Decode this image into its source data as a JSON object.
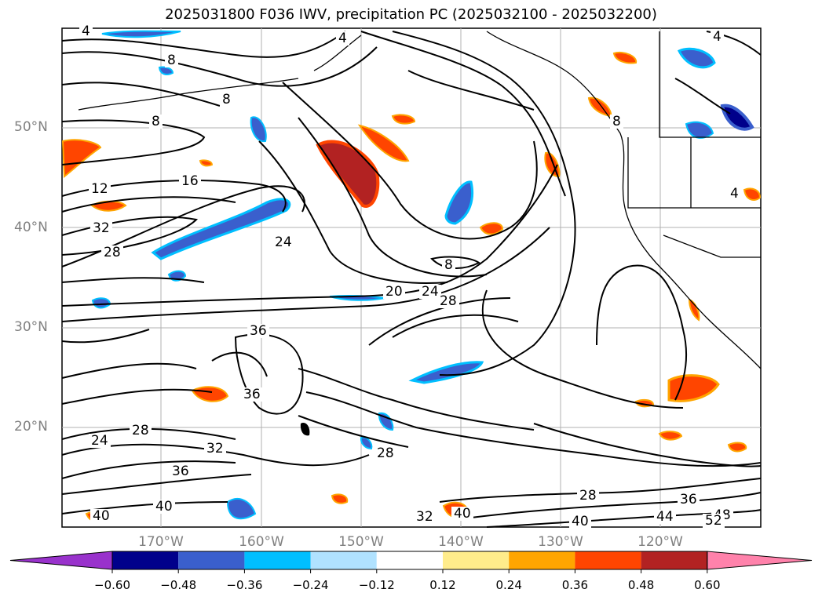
{
  "title": "2025031800 F036 IWV, precipitation PC (2025032100 - 2025032200)",
  "lat_labels": [
    "50°N",
    "40°N",
    "30°N",
    "20°N"
  ],
  "lon_labels": [
    "170°W",
    "160°W",
    "150°W",
    "140°W",
    "130°W",
    "120°W"
  ],
  "colorbar": {
    "ticks": [
      "−0.60",
      "−0.48",
      "−0.36",
      "−0.24",
      "−0.12",
      "0.12",
      "0.24",
      "0.36",
      "0.48",
      "0.60"
    ],
    "colors": [
      "#9932cc",
      "#00008b",
      "#3a5fcd",
      "#00bfff",
      "#b0e2ff",
      "#ffffff",
      "#ffec8b",
      "#ffa500",
      "#ff4500",
      "#b22222",
      "#ff82ab"
    ]
  },
  "contour_labels": [
    "4",
    "8",
    "8",
    "8",
    "4",
    "8",
    "12",
    "16",
    "24",
    "20",
    "24",
    "28",
    "32",
    "28",
    "36",
    "36",
    "24",
    "28",
    "32",
    "36",
    "40",
    "28",
    "32",
    "40",
    "28",
    "36",
    "40",
    "44",
    "48",
    "52",
    "40",
    "4",
    "8",
    "4"
  ]
}
